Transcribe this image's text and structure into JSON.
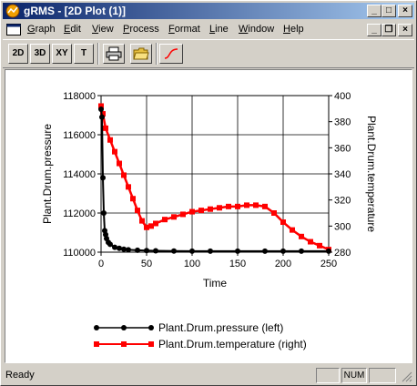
{
  "window": {
    "title": "gRMS - [2D Plot (1)]"
  },
  "caption_buttons": {
    "minimize": "_",
    "maximize": "□",
    "close": "×"
  },
  "mdi_buttons": {
    "minimize": "_",
    "restore": "❐",
    "close": "×"
  },
  "menu": [
    {
      "label": "Graph",
      "ul": "G",
      "rest": "raph"
    },
    {
      "label": "Edit",
      "ul": "E",
      "rest": "dit"
    },
    {
      "label": "View",
      "ul": "V",
      "rest": "iew"
    },
    {
      "label": "Process",
      "ul": "P",
      "rest": "rocess"
    },
    {
      "label": "Format",
      "ul": "F",
      "rest": "ormat"
    },
    {
      "label": "Line",
      "ul": "L",
      "rest": "ine"
    },
    {
      "label": "Window",
      "ul": "W",
      "rest": "indow"
    },
    {
      "label": "Help",
      "ul": "H",
      "rest": "elp"
    }
  ],
  "toolbar": {
    "btn_2d": "2D",
    "btn_3d": "3D",
    "btn_xy": "XY",
    "btn_t": "T"
  },
  "status": {
    "text": "Ready",
    "num": "NUM"
  },
  "colors": {
    "pressure": "#000000",
    "temperature": "#ff0000",
    "titlebar": "#0a246a"
  },
  "chart_data": {
    "type": "line",
    "xlabel": "Time",
    "ylabel_left": "Plant.Drum.pressure",
    "ylabel_right": "Plant.Drum.temperature",
    "xlim": [
      0,
      250
    ],
    "ylim_left": [
      110000,
      118000
    ],
    "ylim_right": [
      280,
      400
    ],
    "x_ticks": [
      0,
      50,
      100,
      150,
      200,
      250
    ],
    "y_ticks_left": [
      110000,
      112000,
      114000,
      116000,
      118000
    ],
    "y_ticks_right": [
      280,
      300,
      320,
      340,
      360,
      380,
      400
    ],
    "grid": true,
    "legend_position": "bottom",
    "series": [
      {
        "name": "Plant.Drum.pressure (left)",
        "axis": "left",
        "x": [
          0,
          1,
          2,
          3,
          4,
          5,
          6,
          8,
          10,
          15,
          20,
          25,
          30,
          40,
          50,
          60,
          80,
          100,
          120,
          150,
          180,
          200,
          220,
          250
        ],
        "y": [
          117300,
          116900,
          113800,
          112000,
          111100,
          110900,
          110700,
          110500,
          110400,
          110250,
          110200,
          110150,
          110120,
          110100,
          110080,
          110070,
          110060,
          110050,
          110050,
          110050,
          110050,
          110050,
          110050,
          110050
        ]
      },
      {
        "name": "Plant.Drum.temperature (right)",
        "axis": "right",
        "x": [
          0,
          2,
          5,
          10,
          15,
          20,
          25,
          30,
          35,
          40,
          45,
          50,
          55,
          60,
          70,
          80,
          90,
          100,
          110,
          120,
          130,
          140,
          150,
          160,
          170,
          180,
          190,
          200,
          210,
          220,
          230,
          240,
          250
        ],
        "y": [
          392,
          386,
          375,
          366,
          357,
          348,
          339,
          330,
          321,
          312,
          304,
          299,
          300,
          302,
          305,
          307,
          309,
          311,
          312,
          313,
          314,
          315,
          315,
          316,
          316,
          315,
          310,
          303,
          297,
          292,
          288,
          285,
          282
        ]
      }
    ]
  }
}
